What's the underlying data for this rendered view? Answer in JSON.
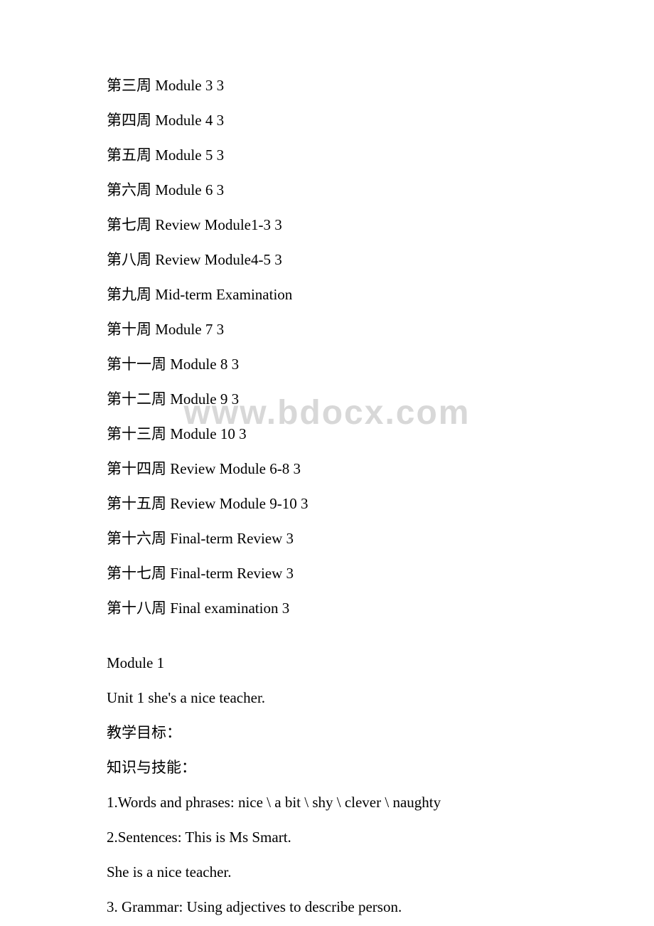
{
  "watermark": "www.bdocx.com",
  "schedule": [
    {
      "week": "第三周",
      "content": "Module 3 3"
    },
    {
      "week": "第四周",
      "content": "Module 4 3"
    },
    {
      "week": "第五周",
      "content": "Module 5 3"
    },
    {
      "week": "第六周",
      "content": "Module 6 3"
    },
    {
      "week": "第七周",
      "content": "Review Module1-3 3"
    },
    {
      "week": "第八周",
      "content": "Review Module4-5 3"
    },
    {
      "week": "第九周",
      "content": "Mid-term Examination"
    },
    {
      "week": "第十周",
      "content": "Module 7 3"
    },
    {
      "week": "第十一周",
      "content": "Module 8 3"
    },
    {
      "week": "第十二周",
      "content": "Module 9 3"
    },
    {
      "week": "第十三周",
      "content": "Module 10 3"
    },
    {
      "week": "第十四周",
      "content": "Review Module 6-8 3"
    },
    {
      "week": "第十五周",
      "content": "Review Module 9-10 3"
    },
    {
      "week": "第十六周",
      "content": "Final-term Review 3"
    },
    {
      "week": "第十七周",
      "content": "Final-term Review 3"
    },
    {
      "week": "第十八周",
      "content": "Final examination 3"
    }
  ],
  "module": {
    "title": "Module 1",
    "unit": "Unit 1 she's a nice teacher.",
    "objectives_label": "教学目标：",
    "knowledge_label": "知识与技能：",
    "items": [
      "1.Words and phrases: nice \\ a bit \\ shy \\ clever \\ naughty",
      "2.Sentences: This is Ms Smart.",
      "She is a nice teacher.",
      "3. Grammar: Using adjectives to describe person."
    ]
  },
  "styles": {
    "background_color": "#ffffff",
    "text_color": "#000000",
    "watermark_color": "#d8d8d8",
    "font_size": 21,
    "watermark_font_size": 48,
    "line_spacing": 28
  }
}
